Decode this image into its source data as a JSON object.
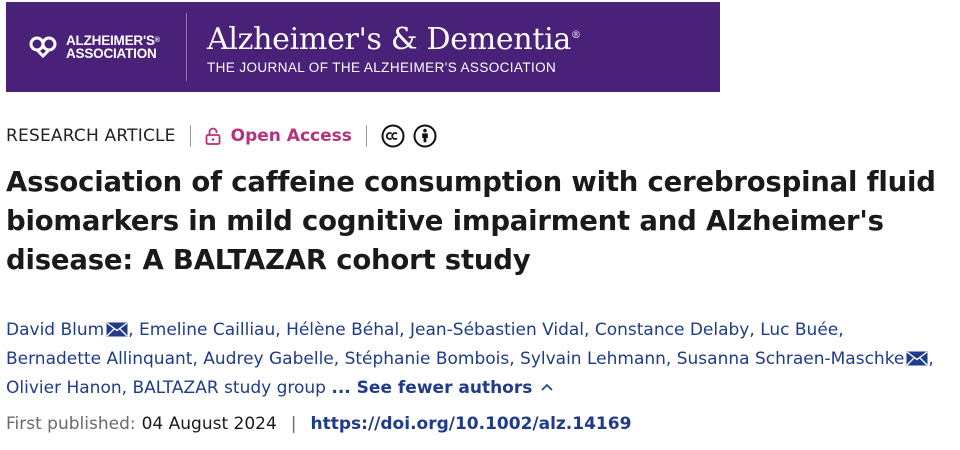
{
  "banner": {
    "association_line1": "ALZHEIMER'S",
    "association_line2": "ASSOCIATION",
    "association_mark": "®",
    "journal_name": "Alzheimer's & Dementia",
    "journal_mark": "®",
    "journal_subtitle": "THE JOURNAL OF THE ALZHEIMER'S ASSOCIATION",
    "background_color": "#4a2179"
  },
  "meta": {
    "article_type": "RESEARCH ARTICLE",
    "open_access_label": "Open Access",
    "open_access_icon": "lock-open-icon",
    "license_icons": [
      "creative-commons-icon",
      "attribution-icon"
    ]
  },
  "title": "Association of caffeine consumption with cerebrospinal fluid biomarkers in mild cognitive impairment and Alzheimer's disease: A BALTAZAR cohort study",
  "authors": [
    {
      "name": "David Blum",
      "email": true
    },
    {
      "name": "Emeline Cailliau",
      "email": false
    },
    {
      "name": "Hélène Béhal",
      "email": false
    },
    {
      "name": "Jean-Sébastien Vidal",
      "email": false
    },
    {
      "name": "Constance Delaby",
      "email": false
    },
    {
      "name": "Luc Buée",
      "email": false
    },
    {
      "name": "Bernadette Allinquant",
      "email": false
    },
    {
      "name": "Audrey Gabelle",
      "email": false
    },
    {
      "name": "Stéphanie Bombois",
      "email": false
    },
    {
      "name": "Sylvain Lehmann",
      "email": false
    },
    {
      "name": "Susanna Schraen-Maschke",
      "email": true
    },
    {
      "name": "Olivier Hanon",
      "email": false
    },
    {
      "name": "BALTAZAR study group",
      "email": false
    }
  ],
  "authors_toggle": "... See fewer authors",
  "published": {
    "label": "First published:",
    "date": "04 August 2024",
    "separator": "|",
    "doi": "https://doi.org/10.1002/alz.14169"
  },
  "colors": {
    "link": "#1f3b8a",
    "open_access": "#b5307d"
  }
}
